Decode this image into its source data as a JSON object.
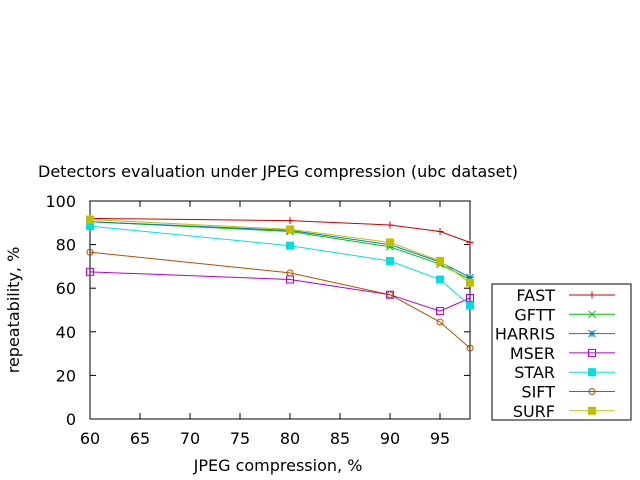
{
  "chart_data": {
    "type": "line",
    "title": "Detectors evaluation under JPEG compression (ubc dataset)",
    "xlabel": "JPEG compression, %",
    "ylabel": "repeatability, %",
    "xlim": [
      60,
      98
    ],
    "ylim": [
      0,
      100
    ],
    "x_ticks": [
      "60",
      "65",
      "70",
      "75",
      "80",
      "85",
      "90",
      "95"
    ],
    "y_ticks": [
      "0",
      "20",
      "40",
      "60",
      "80",
      "100"
    ],
    "x": [
      60,
      80,
      90,
      95,
      98
    ],
    "legend_position": "right",
    "grid": false,
    "series": [
      {
        "name": "FAST",
        "color": "#cc0000",
        "marker": "plus",
        "values": [
          92,
          91,
          89,
          86,
          81
        ]
      },
      {
        "name": "GFTT",
        "color": "#00c000",
        "marker": "cross",
        "values": [
          90.5,
          86,
          79,
          71,
          64
        ]
      },
      {
        "name": "HARRIS",
        "color": "#0080c0",
        "marker": "star",
        "values": [
          90.5,
          86.5,
          80,
          72,
          65
        ]
      },
      {
        "name": "MSER",
        "color": "#b000d0",
        "marker": "open-square",
        "values": [
          67.5,
          64,
          57,
          49.5,
          55.5
        ]
      },
      {
        "name": "STAR",
        "color": "#00e0e0",
        "marker": "filled-square",
        "values": [
          88.5,
          79.5,
          72.5,
          64,
          52
        ]
      },
      {
        "name": "SIFT",
        "color": "#b05000",
        "marker": "open-circle",
        "values": [
          76.5,
          67,
          57,
          44.5,
          32.5
        ]
      },
      {
        "name": "SURF",
        "color": "#c0c000",
        "marker": "filled-square",
        "values": [
          91.5,
          87,
          81,
          72.5,
          62.5
        ]
      }
    ]
  }
}
